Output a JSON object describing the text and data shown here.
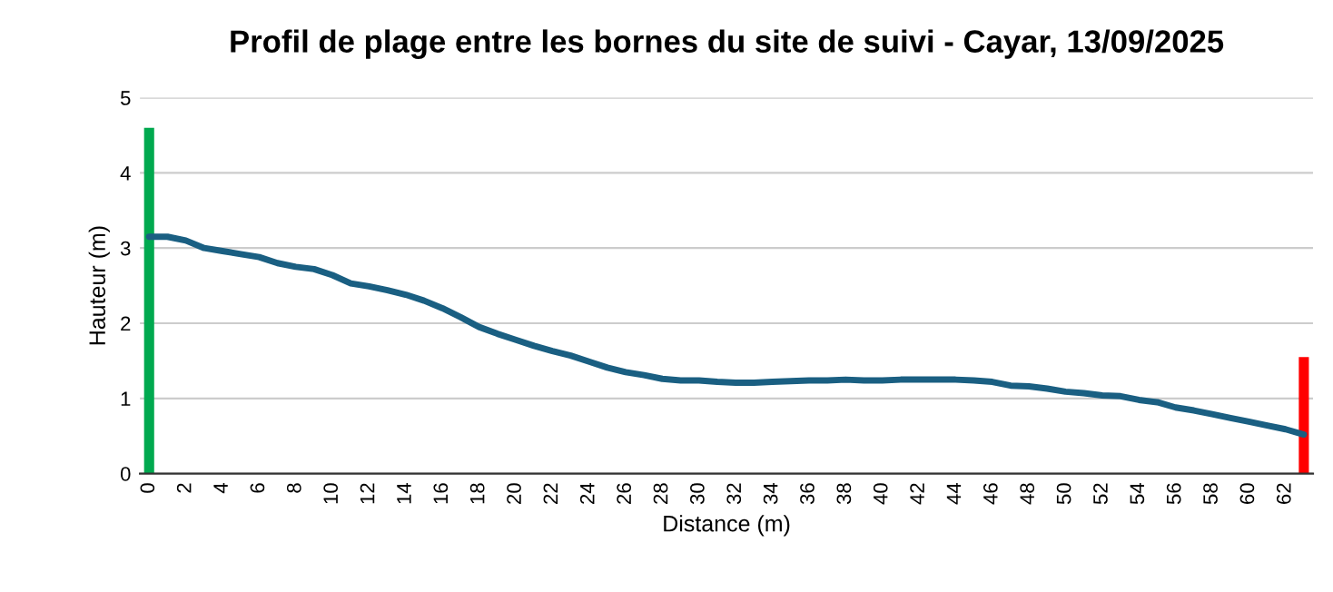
{
  "chart_data": {
    "type": "line",
    "title": "Profil de plage entre les bornes du site de suivi - Cayar, 13/09/2025",
    "xlabel": "Distance (m)",
    "ylabel": "Hauteur (m)",
    "xlim": [
      -0.5,
      63.5
    ],
    "xticks": [
      0,
      2,
      4,
      6,
      8,
      10,
      12,
      14,
      16,
      18,
      20,
      22,
      24,
      26,
      28,
      30,
      32,
      34,
      36,
      38,
      40,
      42,
      44,
      46,
      48,
      50,
      52,
      54,
      56,
      58,
      60,
      62
    ],
    "ylim": [
      0,
      5
    ],
    "yticks": [
      0,
      1,
      2,
      3,
      4,
      5
    ],
    "grid": "y",
    "legend": false,
    "series": [
      {
        "type": "bar",
        "x": [
          0,
          63
        ],
        "values": [
          4.6,
          1.55
        ],
        "colors": [
          "#00a94f",
          "#ff0000"
        ]
      },
      {
        "color": "#1a5f82",
        "x": [
          0,
          1,
          2,
          3,
          4,
          5,
          6,
          7,
          8,
          9,
          10,
          11,
          12,
          13,
          14,
          15,
          16,
          17,
          18,
          19,
          20,
          21,
          22,
          23,
          24,
          25,
          26,
          27,
          28,
          29,
          30,
          31,
          32,
          33,
          34,
          35,
          36,
          37,
          38,
          39,
          40,
          41,
          42,
          43,
          44,
          45,
          46,
          47,
          48,
          49,
          50,
          51,
          52,
          53,
          54,
          55,
          56,
          57,
          58,
          59,
          60,
          61,
          62,
          63
        ],
        "values": [
          3.15,
          3.15,
          3.1,
          3.0,
          2.96,
          2.92,
          2.88,
          2.8,
          2.75,
          2.72,
          2.64,
          2.53,
          2.49,
          2.44,
          2.38,
          2.3,
          2.2,
          2.08,
          1.95,
          1.86,
          1.78,
          1.7,
          1.63,
          1.57,
          1.49,
          1.41,
          1.35,
          1.31,
          1.26,
          1.24,
          1.24,
          1.22,
          1.21,
          1.21,
          1.22,
          1.23,
          1.24,
          1.24,
          1.25,
          1.24,
          1.24,
          1.25,
          1.25,
          1.25,
          1.25,
          1.24,
          1.22,
          1.17,
          1.16,
          1.13,
          1.09,
          1.07,
          1.04,
          1.03,
          0.98,
          0.95,
          0.88,
          0.84,
          0.79,
          0.74,
          0.69,
          0.64,
          0.59,
          0.52
        ]
      }
    ]
  }
}
